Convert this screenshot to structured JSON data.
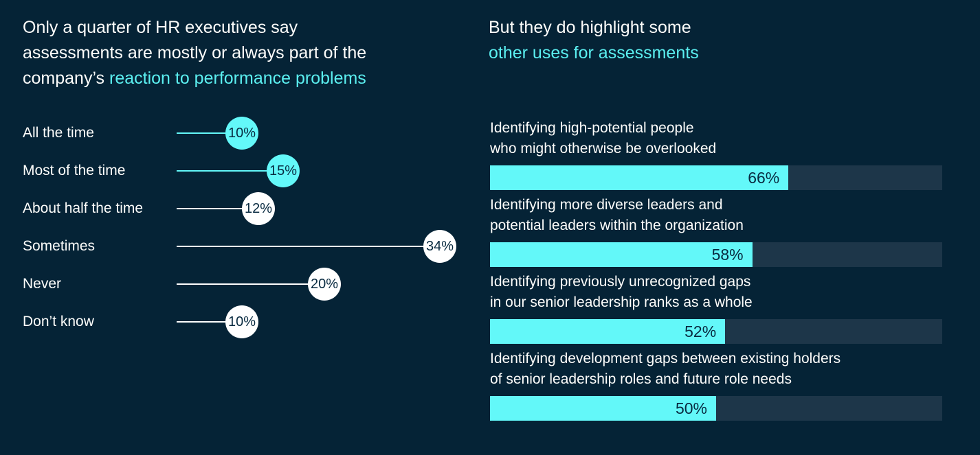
{
  "colors": {
    "background": "#052336",
    "accent_fill": "#63f8f9",
    "accent_text": "#5beff0",
    "bar_track": "#1d3649",
    "text_light": "#fdfdfb",
    "text_dark": "#082a40"
  },
  "left_panel": {
    "title": {
      "line1": "Only a quarter of HR executives say",
      "line2": "assessments are mostly or always part of the",
      "line3_white": "company’s ",
      "line3_accent": "reaction to performance problems"
    },
    "chart": {
      "items": [
        {
          "label": "All the time",
          "value": 10,
          "display": "10%",
          "highlight": true
        },
        {
          "label": "Most of the time",
          "value": 15,
          "display": "15%",
          "highlight": true
        },
        {
          "label": "About half the time",
          "value": 12,
          "display": "12%",
          "highlight": false
        },
        {
          "label": "Sometimes",
          "value": 34,
          "display": "34%",
          "highlight": false
        },
        {
          "label": "Never",
          "value": 20,
          "display": "20%",
          "highlight": false
        },
        {
          "label": "Don’t know",
          "value": 10,
          "display": "10%",
          "highlight": false
        }
      ]
    }
  },
  "right_panel": {
    "title": {
      "line1": "But they do highlight some",
      "line2_accent": "other uses for assessments"
    },
    "chart": {
      "items": [
        {
          "label_line1": "Identifying high-potential people",
          "label_line2": "who might otherwise be overlooked",
          "value": 66,
          "display": "66%"
        },
        {
          "label_line1": "Identifying more diverse leaders and",
          "label_line2": "potential leaders within the organization",
          "value": 58,
          "display": "58%"
        },
        {
          "label_line1": "Identifying previously unrecognized gaps",
          "label_line2": "in our senior leadership ranks as a whole",
          "value": 52,
          "display": "52%"
        },
        {
          "label_line1": "Identifying development gaps between existing holders",
          "label_line2": "of senior leadership roles and future role needs",
          "value": 50,
          "display": "50%"
        }
      ]
    }
  },
  "chart_data": [
    {
      "type": "scatter",
      "subtype": "lollipop",
      "title": "Only a quarter of HR executives say assessments are mostly or always part of the company’s reaction to performance problems",
      "categories": [
        "All the time",
        "Most of the time",
        "About half the time",
        "Sometimes",
        "Never",
        "Don’t know"
      ],
      "values": [
        10,
        15,
        12,
        34,
        20,
        10
      ],
      "unit": "%",
      "highlighted_categories": [
        "All the time",
        "Most of the time"
      ],
      "xlabel": "",
      "ylabel": "",
      "xlim": [
        0,
        40
      ],
      "grid": false,
      "legend": false
    },
    {
      "type": "bar",
      "orientation": "horizontal",
      "title": "But they do highlight some other uses for assessments",
      "categories": [
        "Identifying high-potential people who might otherwise be overlooked",
        "Identifying more diverse leaders and potential leaders within the organization",
        "Identifying previously unrecognized gaps in our senior leadership ranks as a whole",
        "Identifying development gaps between existing holders of senior leadership roles and future role needs"
      ],
      "values": [
        66,
        58,
        52,
        50
      ],
      "unit": "%",
      "xlabel": "",
      "ylabel": "",
      "xlim": [
        0,
        100
      ],
      "grid": false,
      "legend": false
    }
  ]
}
